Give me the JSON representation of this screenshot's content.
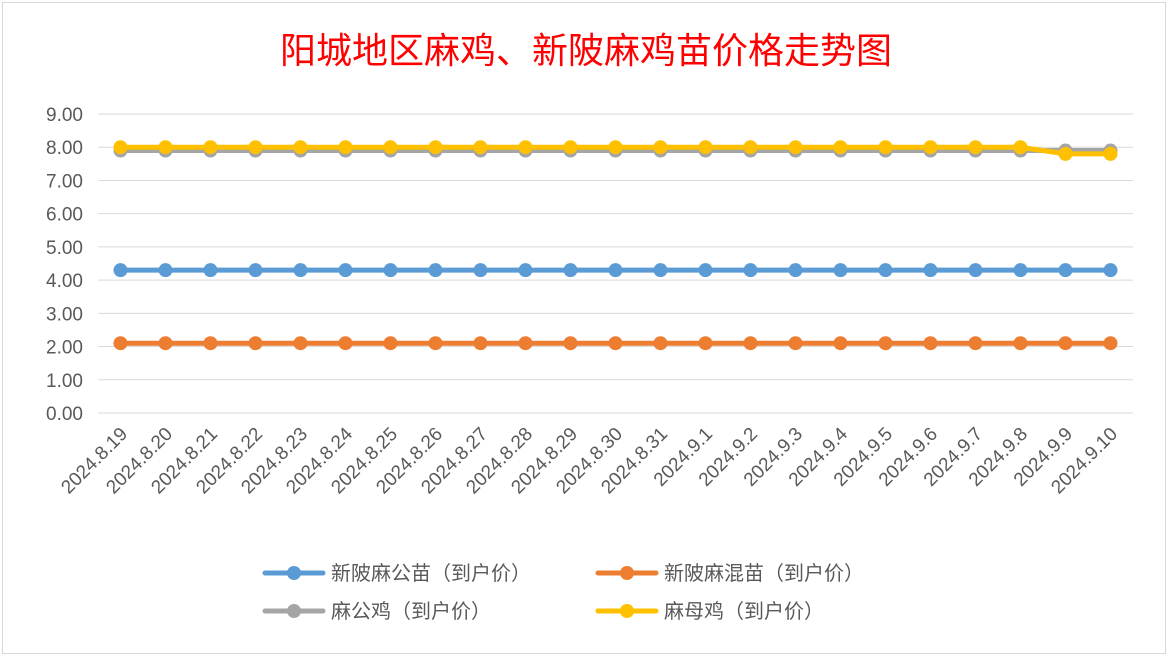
{
  "chart_data": {
    "type": "line",
    "title": "阳城地区麻鸡、新陂麻鸡苗价格走势图",
    "xlabel": "",
    "ylabel": "",
    "ylim": [
      0,
      9
    ],
    "y_ticks": [
      "0.00",
      "1.00",
      "2.00",
      "3.00",
      "4.00",
      "5.00",
      "6.00",
      "7.00",
      "8.00",
      "9.00"
    ],
    "grid": true,
    "legend_position": "bottom",
    "categories": [
      "2024.8.19",
      "2024.8.20",
      "2024.8.21",
      "2024.8.22",
      "2024.8.23",
      "2024.8.24",
      "2024.8.25",
      "2024.8.26",
      "2024.8.27",
      "2024.8.28",
      "2024.8.29",
      "2024.8.30",
      "2024.8.31",
      "2024.9.1",
      "2024.9.2",
      "2024.9.3",
      "2024.9.4",
      "2024.9.5",
      "2024.9.6",
      "2024.9.7",
      "2024.9.8",
      "2024.9.9",
      "2024.9.10"
    ],
    "series": [
      {
        "name": "新陂麻公苗（到户价）",
        "color": "#5b9bd5",
        "values": [
          4.3,
          4.3,
          4.3,
          4.3,
          4.3,
          4.3,
          4.3,
          4.3,
          4.3,
          4.3,
          4.3,
          4.3,
          4.3,
          4.3,
          4.3,
          4.3,
          4.3,
          4.3,
          4.3,
          4.3,
          4.3,
          4.3,
          4.3
        ]
      },
      {
        "name": "新陂麻混苗（到户价）",
        "color": "#ed7d31",
        "values": [
          2.1,
          2.1,
          2.1,
          2.1,
          2.1,
          2.1,
          2.1,
          2.1,
          2.1,
          2.1,
          2.1,
          2.1,
          2.1,
          2.1,
          2.1,
          2.1,
          2.1,
          2.1,
          2.1,
          2.1,
          2.1,
          2.1,
          2.1
        ]
      },
      {
        "name": "麻公鸡（到户价）",
        "color": "#a5a5a5",
        "values": [
          7.9,
          7.9,
          7.9,
          7.9,
          7.9,
          7.9,
          7.9,
          7.9,
          7.9,
          7.9,
          7.9,
          7.9,
          7.9,
          7.9,
          7.9,
          7.9,
          7.9,
          7.9,
          7.9,
          7.9,
          7.9,
          7.9,
          7.9
        ]
      },
      {
        "name": "麻母鸡（到户价）",
        "color": "#ffc000",
        "values": [
          8.0,
          8.0,
          8.0,
          8.0,
          8.0,
          8.0,
          8.0,
          8.0,
          8.0,
          8.0,
          8.0,
          8.0,
          8.0,
          8.0,
          8.0,
          8.0,
          8.0,
          8.0,
          8.0,
          8.0,
          8.0,
          7.8,
          7.8
        ]
      }
    ]
  }
}
